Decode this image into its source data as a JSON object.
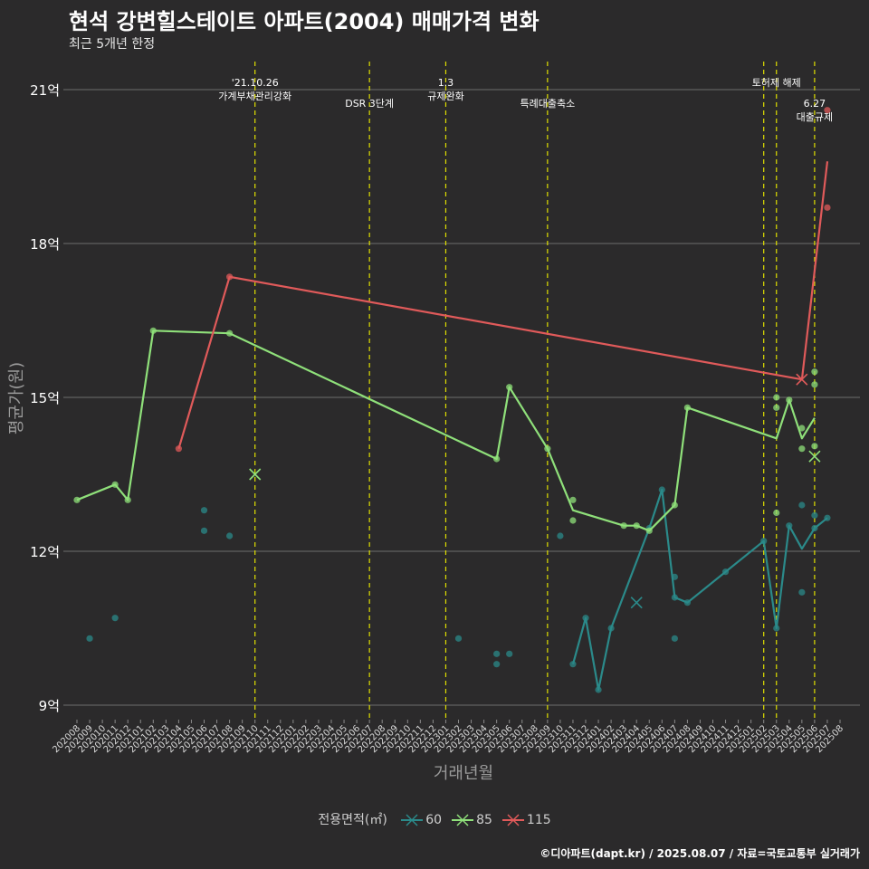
{
  "chart_data": {
    "type": "line",
    "title": "현석 강변힐스테이트 아파트(2004) 매매가격 변화",
    "subtitle": "최근 5개년 한정",
    "xlabel": "거래년월",
    "ylabel": "평균가(원)",
    "caption": "©디아파트(dapt.kr) / 2025.08.07 / 자료=국토교통부 실거래가",
    "legend_title": "전용면적(㎡)",
    "legend_position": "bottom",
    "grid": true,
    "ylim": [
      8.8,
      21.5
    ],
    "yticks": [
      {
        "value": 9,
        "label": "9억"
      },
      {
        "value": 12,
        "label": "12억"
      },
      {
        "value": 15,
        "label": "15억"
      },
      {
        "value": 18,
        "label": "18억"
      },
      {
        "value": 21,
        "label": "21억"
      }
    ],
    "categories": [
      "202008",
      "202009",
      "202010",
      "202011",
      "202012",
      "202101",
      "202102",
      "202103",
      "202104",
      "202105",
      "202106",
      "202107",
      "202108",
      "202109",
      "202110",
      "202111",
      "202112",
      "202201",
      "202202",
      "202203",
      "202204",
      "202205",
      "202206",
      "202207",
      "202208",
      "202209",
      "202210",
      "202211",
      "202212",
      "202301",
      "202302",
      "202303",
      "202304",
      "202305",
      "202306",
      "202307",
      "202308",
      "202309",
      "202310",
      "202311",
      "202312",
      "202401",
      "202402",
      "202403",
      "202404",
      "202405",
      "202406",
      "202407",
      "202408",
      "202409",
      "202410",
      "202411",
      "202412",
      "202501",
      "202502",
      "202503",
      "202504",
      "202505",
      "202506",
      "202507",
      "202508"
    ],
    "events": [
      {
        "x": "202110",
        "label": "'21.10.26\n가계부채관리강화",
        "row": 0
      },
      {
        "x": "202207",
        "label": "DSR 3단계",
        "row": 1
      },
      {
        "x": "202301",
        "label": "1.3\n규제완화",
        "row": 0
      },
      {
        "x": "202309",
        "label": "특례대출축소",
        "row": 1
      },
      {
        "x": "202502",
        "label": "",
        "row": 0
      },
      {
        "x": "202503",
        "label": "토허제 해제",
        "row": 0
      },
      {
        "x": "202506",
        "label": "6.27\n대출규제",
        "row": 1
      }
    ],
    "series": [
      {
        "name": "60",
        "color": "#2b8a8a",
        "line": [
          [
            "202311",
            9.8
          ],
          [
            "202312",
            10.7
          ],
          [
            "202401",
            9.3
          ],
          [
            "202402",
            10.5
          ],
          [
            "202405",
            12.45
          ],
          [
            "202406",
            13.2
          ],
          [
            "202407",
            11.1
          ],
          [
            "202408",
            11.0
          ],
          [
            "202502",
            12.2
          ],
          [
            "202503",
            10.5
          ],
          [
            "202504",
            12.5
          ],
          [
            "202505",
            12.05
          ],
          [
            "202506",
            12.45
          ],
          [
            "202507",
            12.65
          ]
        ],
        "points": [
          [
            "202009",
            10.3
          ],
          [
            "202011",
            10.7
          ],
          [
            "202106",
            12.8
          ],
          [
            "202106",
            12.4
          ],
          [
            "202108",
            12.3
          ],
          [
            "202302",
            10.3
          ],
          [
            "202305",
            10.0
          ],
          [
            "202305",
            9.8
          ],
          [
            "202306",
            10.0
          ],
          [
            "202310",
            12.3
          ],
          [
            "202311",
            9.8
          ],
          [
            "202312",
            10.7
          ],
          [
            "202401",
            9.3
          ],
          [
            "202402",
            10.5
          ],
          [
            "202405",
            12.45
          ],
          [
            "202406",
            13.2
          ],
          [
            "202407",
            11.1
          ],
          [
            "202407",
            11.5
          ],
          [
            "202407",
            10.3
          ],
          [
            "202408",
            11.0
          ],
          [
            "202411",
            11.6
          ],
          [
            "202502",
            12.2
          ],
          [
            "202503",
            10.5
          ],
          [
            "202504",
            12.5
          ],
          [
            "202505",
            12.9
          ],
          [
            "202505",
            11.2
          ],
          [
            "202506",
            12.45
          ],
          [
            "202506",
            12.7
          ],
          [
            "202507",
            12.65
          ]
        ],
        "crosses": [
          [
            "202404",
            11.0
          ]
        ]
      },
      {
        "name": "85",
        "color": "#8fe07a",
        "line": [
          [
            "202008",
            13.0
          ],
          [
            "202011",
            13.3
          ],
          [
            "202012",
            13.0
          ],
          [
            "202102",
            16.3
          ],
          [
            "202108",
            16.25
          ],
          [
            "202305",
            13.8
          ],
          [
            "202306",
            15.2
          ],
          [
            "202309",
            14.0
          ],
          [
            "202311",
            12.8
          ],
          [
            "202403",
            12.5
          ],
          [
            "202404",
            12.5
          ],
          [
            "202405",
            12.4
          ],
          [
            "202407",
            12.9
          ],
          [
            "202408",
            14.8
          ],
          [
            "202503",
            14.2
          ],
          [
            "202504",
            14.95
          ],
          [
            "202505",
            14.2
          ],
          [
            "202506",
            14.6
          ]
        ],
        "points": [
          [
            "202008",
            13.0
          ],
          [
            "202011",
            13.3
          ],
          [
            "202012",
            13.0
          ],
          [
            "202102",
            16.3
          ],
          [
            "202108",
            16.25
          ],
          [
            "202305",
            13.8
          ],
          [
            "202306",
            15.2
          ],
          [
            "202309",
            14.0
          ],
          [
            "202311",
            13.0
          ],
          [
            "202311",
            12.6
          ],
          [
            "202403",
            12.5
          ],
          [
            "202404",
            12.5
          ],
          [
            "202405",
            12.4
          ],
          [
            "202407",
            12.9
          ],
          [
            "202408",
            14.8
          ],
          [
            "202503",
            15.0
          ],
          [
            "202503",
            14.8
          ],
          [
            "202503",
            12.75
          ],
          [
            "202504",
            14.95
          ],
          [
            "202505",
            14.4
          ],
          [
            "202505",
            14.0
          ],
          [
            "202506",
            15.5
          ],
          [
            "202506",
            15.25
          ],
          [
            "202506",
            14.05
          ]
        ],
        "crosses": [
          [
            "202110",
            13.5
          ],
          [
            "202506",
            13.85
          ]
        ]
      },
      {
        "name": "115",
        "color": "#e05a5a",
        "line": [
          [
            "202104",
            14.0
          ],
          [
            "202108",
            17.35
          ],
          [
            "202505",
            15.35
          ],
          [
            "202507",
            19.6
          ]
        ],
        "points": [
          [
            "202104",
            14.0
          ],
          [
            "202108",
            17.35
          ],
          [
            "202507",
            20.6
          ],
          [
            "202507",
            18.7
          ]
        ],
        "crosses": [
          [
            "202505",
            15.35
          ]
        ]
      }
    ]
  }
}
